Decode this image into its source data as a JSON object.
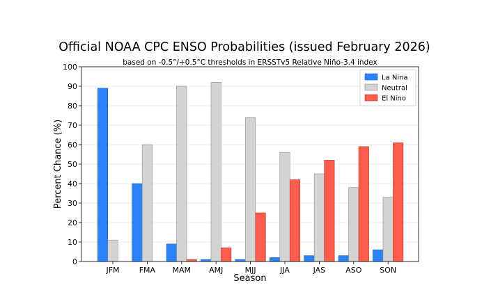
{
  "chart_data": {
    "type": "bar",
    "title": "Official NOAA CPC ENSO Probabilities (issued February 2026)",
    "subtitle": "based on -0.5°/+0.5°C thresholds in ERSSTv5 Relative Niño-3.4 index",
    "xlabel": "Season",
    "ylabel": "Percent Chance (%)",
    "ylim": [
      0,
      100
    ],
    "yticks": [
      0,
      10,
      20,
      30,
      40,
      50,
      60,
      70,
      80,
      90,
      100
    ],
    "grid": true,
    "legend_position": "top-right",
    "categories": [
      "JFM",
      "FMA",
      "MAM",
      "AMJ",
      "MJJ",
      "JJA",
      "JAS",
      "ASO",
      "SON"
    ],
    "series": [
      {
        "name": "La Nina",
        "color": "#2a83f8",
        "edge": "#1f5fb5",
        "values": [
          89,
          40,
          9,
          1,
          1,
          2,
          3,
          3,
          6
        ]
      },
      {
        "name": "Neutral",
        "color": "#d3d3d3",
        "edge": "#8c8c8c",
        "values": [
          11,
          60,
          90,
          92,
          74,
          56,
          45,
          38,
          33
        ]
      },
      {
        "name": "El Nino",
        "color": "#fb5e4c",
        "edge": "#b83a2c",
        "values": [
          0,
          0,
          1,
          7,
          25,
          42,
          52,
          59,
          61
        ]
      }
    ]
  }
}
